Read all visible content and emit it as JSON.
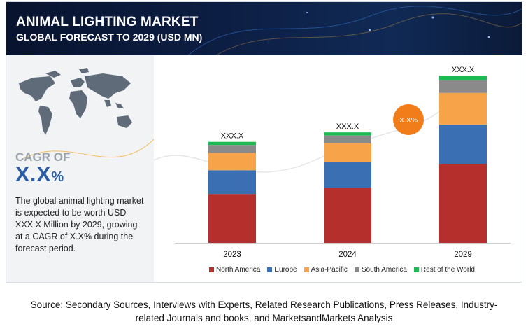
{
  "header": {
    "title": "ANIMAL LIGHTING MARKET",
    "subtitle": "GLOBAL FORECAST TO 2029 (USD MN)"
  },
  "summary": {
    "cagr_label": "CAGR OF",
    "cagr_value": "X.X",
    "cagr_unit": "%",
    "description": "The global animal lighting market is expected to be worth USD XXX.X Million by 2029, growing at a CAGR of X.X% during the forecast period."
  },
  "growth_bubble": "X.X%",
  "chart_data": {
    "type": "bar",
    "stacked": true,
    "categories": [
      "2023",
      "2024",
      "2029"
    ],
    "total_labels": [
      "XXX.X",
      "XXX.X",
      "XXX.X"
    ],
    "series": [
      {
        "name": "North America",
        "color": "#b5302c",
        "values": [
          31,
          35,
          50
        ]
      },
      {
        "name": "Europe",
        "color": "#3a6fb4",
        "values": [
          15,
          16,
          25
        ]
      },
      {
        "name": "Asia-Pacific",
        "color": "#f7a34a",
        "values": [
          11,
          12,
          20
        ]
      },
      {
        "name": "South America",
        "color": "#8a8a8a",
        "values": [
          5,
          5,
          8
        ]
      },
      {
        "name": "Rest of the World",
        "color": "#1db954",
        "values": [
          2,
          2,
          3
        ]
      }
    ],
    "ylim": [
      0,
      110
    ],
    "grid": false,
    "legend": "bottom"
  },
  "source": {
    "line1": "Source: Secondary Sources, Interviews with Experts, Related Research Publications, Press Releases, Industry-",
    "line2": "related Journals and books, and MarketsandMarkets Analysis"
  }
}
